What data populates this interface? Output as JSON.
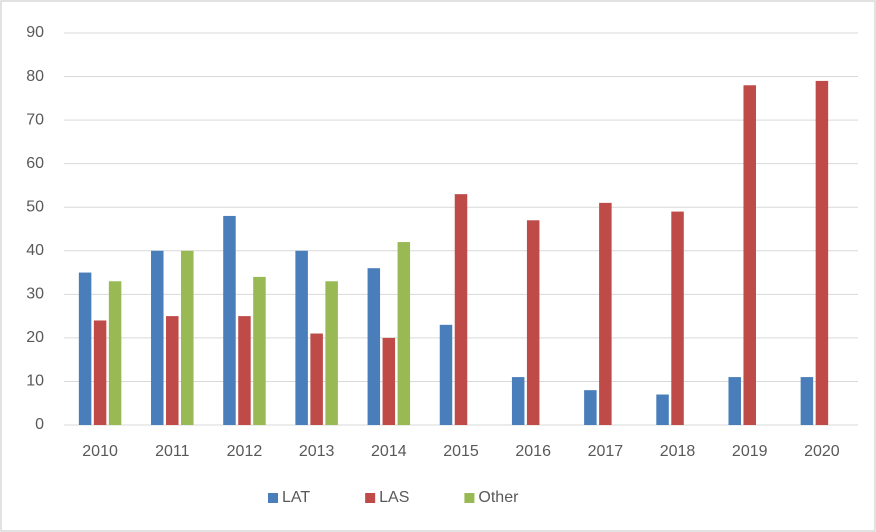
{
  "chart_data": {
    "type": "bar",
    "categories": [
      "2010",
      "2011",
      "2012",
      "2013",
      "2014",
      "2015",
      "2016",
      "2017",
      "2018",
      "2019",
      "2020"
    ],
    "series": [
      {
        "name": "LAT",
        "color": "#4a7ebb",
        "values": [
          35,
          40,
          48,
          40,
          36,
          23,
          11,
          8,
          7,
          11,
          11
        ]
      },
      {
        "name": "LAS",
        "color": "#be4b48",
        "values": [
          24,
          25,
          25,
          21,
          20,
          53,
          47,
          51,
          49,
          78,
          79
        ]
      },
      {
        "name": "Other",
        "color": "#98b954",
        "values": [
          33,
          40,
          34,
          33,
          42,
          null,
          null,
          null,
          null,
          null,
          null
        ]
      }
    ],
    "ylim": [
      0,
      90
    ],
    "yticks": [
      0,
      10,
      20,
      30,
      40,
      50,
      60,
      70,
      80,
      90
    ],
    "grid": true,
    "legend": "bottom"
  }
}
